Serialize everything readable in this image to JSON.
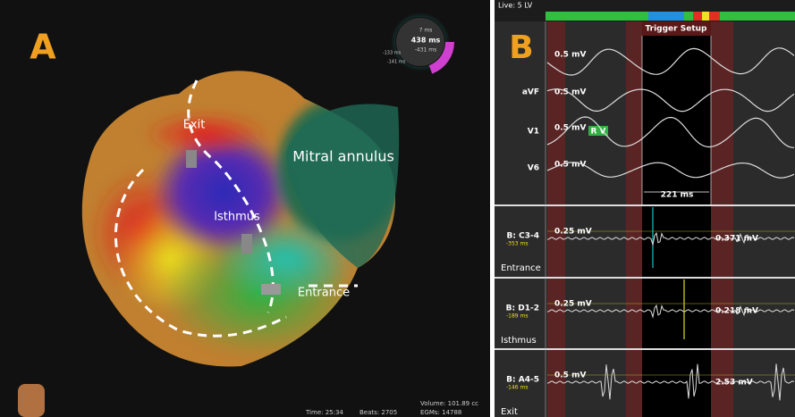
{
  "panel_a": {
    "label": "A",
    "annotations": [
      "Exit",
      "Isthmus",
      "Mitral annulus",
      "Entrance"
    ],
    "color_wheel": {
      "top": "7 ms",
      "center": "438 ms",
      "bottom": "-431 ms",
      "left_top": "-133 ms",
      "left_bottom": "-141 ms"
    },
    "status": {
      "time": "Time: 25:34",
      "beats": "Beats: 2705",
      "volume": "Volume: 101.89 cc",
      "egms": "EGMs: 14788"
    }
  },
  "panel_b": {
    "label": "B",
    "header": "Live: 5 LV",
    "trigger": "Trigger Setup",
    "surface": {
      "scales": [
        "0.5 mV",
        "0.5 mV",
        "0.5 mV",
        "0.5 mV"
      ],
      "leads": [
        "aVF",
        "V1",
        "V6"
      ],
      "marker": "R V",
      "interval": "221 ms"
    },
    "bipolar": [
      {
        "name": "B: C3-4",
        "time": "-353 ms",
        "scale": "0.25 mV",
        "amplitude": "0.371 mV",
        "site": "Entrance"
      },
      {
        "name": "B: D1-2",
        "time": "-189 ms",
        "scale": "0.25 mV",
        "amplitude": "0.218 mV",
        "site": "Isthmus"
      },
      {
        "name": "B: A4-5",
        "time": "-146 ms",
        "scale": "0.5 mV",
        "amplitude": "2.53 mV",
        "site": "Exit"
      }
    ]
  }
}
